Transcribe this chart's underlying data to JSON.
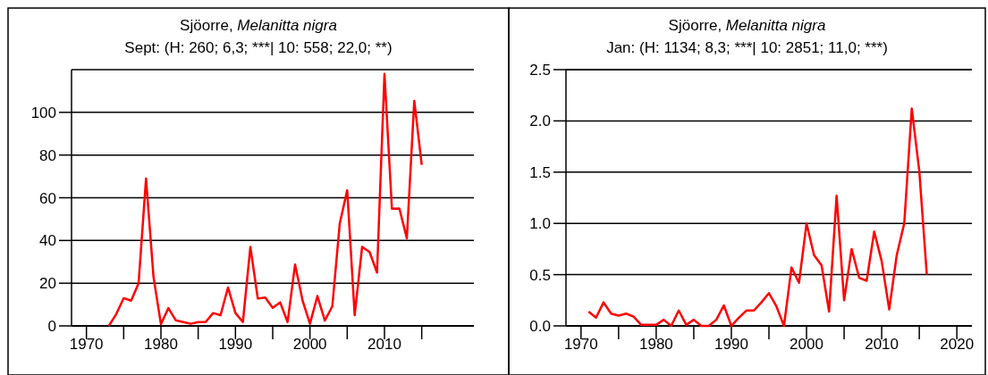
{
  "chart_data": [
    {
      "type": "line",
      "title": "Sjöorre, Melanitta nigra",
      "subtitle": "Sept: (H: 260; 6,3; ***| 10: 558; 22,0; **)",
      "xlim": [
        1968,
        2022
      ],
      "xticks": [
        1970,
        {
          "value": 1975,
          "label": null
        },
        1980,
        {
          "value": 1985,
          "label": null
        },
        1990,
        {
          "value": 1995,
          "label": null
        },
        2000,
        {
          "value": 2005,
          "label": null
        },
        2010,
        {
          "value": 2015,
          "label": null
        }
      ],
      "ylim": [
        0,
        120
      ],
      "yticks": [
        0,
        20,
        40,
        60,
        80,
        100
      ],
      "grid": "y",
      "marker": "none",
      "x": [
        1973,
        1974,
        1975,
        1976,
        1977,
        1978,
        1979,
        1980,
        1981,
        1982,
        1983,
        1984,
        1985,
        1986,
        1987,
        1988,
        1989,
        1990,
        1991,
        1992,
        1993,
        1994,
        1995,
        1996,
        1997,
        1998,
        1999,
        2000,
        2001,
        2002,
        2003,
        2004,
        2005,
        2006,
        2007,
        2008,
        2009,
        2010,
        2011,
        2012,
        2013,
        2014,
        2015
      ],
      "series": [
        {
          "color": "#ff0000",
          "values": [
            0,
            5.5,
            13,
            11.8,
            20,
            69,
            23,
            0.8,
            8.3,
            2.6,
            1.8,
            1,
            1.8,
            1.8,
            6,
            5,
            18,
            6,
            1.8,
            37,
            12.8,
            13.3,
            8.5,
            11,
            1.8,
            28.7,
            12,
            1,
            14,
            2.5,
            9.2,
            48,
            63.5,
            5,
            37,
            34.6,
            25,
            118,
            54.9,
            55,
            41,
            105.4,
            75.4
          ]
        }
      ]
    },
    {
      "type": "line",
      "title": "Sjöorre, Melanitta nigra",
      "subtitle": "Jan: (H: 1134; 8,3; ***| 10: 2851; 11,0; ***)",
      "xlim": [
        1968,
        2022
      ],
      "xticks": [
        1970,
        {
          "value": 1975,
          "label": null
        },
        1980,
        {
          "value": 1985,
          "label": null
        },
        1990,
        {
          "value": 1995,
          "label": null
        },
        2000,
        {
          "value": 2005,
          "label": null
        },
        2010,
        {
          "value": 2015,
          "label": null
        },
        2020
      ],
      "ylim": [
        0,
        2.5
      ],
      "yticks": [
        {
          "value": 0,
          "label": "0.0"
        },
        {
          "value": 0.5,
          "label": "0.5"
        },
        {
          "value": 1,
          "label": "1.0"
        },
        {
          "value": 1.5,
          "label": "1.5"
        },
        {
          "value": 2,
          "label": "2.0"
        },
        {
          "value": 2.5,
          "label": "2.5"
        }
      ],
      "grid": "y",
      "marker": "none",
      "x": [
        1971,
        1972,
        1973,
        1974,
        1975,
        1976,
        1977,
        1978,
        1979,
        1980,
        1981,
        1982,
        1983,
        1984,
        1985,
        1986,
        1987,
        1988,
        1989,
        1990,
        1991,
        1992,
        1993,
        1994,
        1995,
        1996,
        1997,
        1998,
        1999,
        2000,
        2001,
        2002,
        2003,
        2004,
        2005,
        2006,
        2007,
        2008,
        2009,
        2010,
        2011,
        2012,
        2013,
        2014,
        2015,
        2016
      ],
      "series": [
        {
          "color": "#ff0000",
          "values": [
            0.14,
            0.08,
            0.23,
            0.12,
            0.1,
            0.12,
            0.09,
            0.01,
            0.01,
            0.01,
            0.06,
            0,
            0.15,
            0.01,
            0.06,
            0,
            0,
            0.06,
            0.2,
            0,
            0.08,
            0.15,
            0.15,
            0.23,
            0.32,
            0.19,
            0,
            0.57,
            0.42,
            1,
            0.69,
            0.59,
            0.14,
            1.27,
            0.25,
            0.75,
            0.47,
            0.44,
            0.92,
            0.63,
            0.16,
            0.69,
            1,
            2.12,
            1.51,
            0.5
          ]
        }
      ]
    }
  ]
}
